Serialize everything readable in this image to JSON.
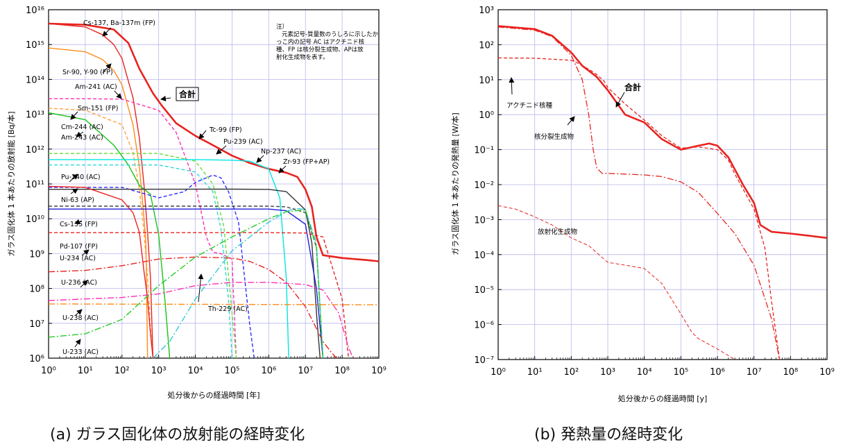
{
  "chart_data": [
    {
      "type": "line",
      "caption": "(a) ガラス固化体の放射能の経時変化",
      "xlabel": "処分後からの経過時間 [年]",
      "ylabel": "ガラス固化体 1 本あたりの放射能 [Bq/本]",
      "xscale": "log",
      "yscale": "log",
      "xlim": [
        1,
        1000000000
      ],
      "ylim": [
        1000000,
        10000000000000000
      ],
      "x_ticks": [
        1,
        10,
        100,
        1000,
        10000,
        100000,
        1000000,
        10000000,
        100000000,
        1000000000
      ],
      "y_ticks": [
        1000000,
        10000000,
        100000000,
        1000000000,
        10000000000,
        100000000000,
        1000000000000,
        10000000000000,
        100000000000000,
        1000000000000000,
        10000000000000000
      ],
      "grid": true,
      "note": "注）\n元素記号-質量数のうしろに示したかっこ内の記号 AC はアクチニド核種、FP は核分裂生成物、APは放射化生成物を表す。",
      "series": [
        {
          "name": "合計",
          "color": "#e8231f",
          "style": "solid",
          "width": 2.6,
          "x": [
            1,
            10,
            60,
            150,
            300,
            700,
            1200,
            3000,
            10000,
            30000,
            100000,
            300000,
            1000000,
            3000000,
            6000000,
            10000000,
            15000000,
            20000000,
            30000000,
            100000000,
            500000000,
            1000000000
          ],
          "y": [
            4000000000000000.0,
            3700000000000000.0,
            2700000000000000.0,
            1100000000000000.0,
            200000000000000.0,
            40000000000000.0,
            18000000000000.0,
            5500000000000.0,
            2400000000000.0,
            1300000000000.0,
            650000000000.0,
            400000000000.0,
            270000000000.0,
            210000000000.0,
            160000000000.0,
            70000000000.0,
            22000000000.0,
            3000000000.0,
            900000000.0,
            750000000.0,
            650000000.0,
            600000000.0
          ]
        },
        {
          "name": "Cs-137, Ba-137m (FP)",
          "color": "#e8231f",
          "style": "solid",
          "width": 1.4,
          "x": [
            1,
            10,
            30,
            60,
            100,
            200,
            300,
            400,
            500,
            600,
            700
          ],
          "y": [
            4000000000000000.0,
            3200000000000000.0,
            1900000000000000.0,
            1000000000000000.0,
            400000000000000.0,
            30000000000000.0,
            2000000000000.0,
            90000000000.0,
            4000000000.0,
            200000000.0,
            1000000.0
          ]
        },
        {
          "name": "Sr-90, Y-90 (FP)",
          "color": "#ff8c1a",
          "style": "solid",
          "width": 1.4,
          "x": [
            1,
            10,
            30,
            60,
            100,
            200,
            300,
            400,
            450,
            500
          ],
          "y": [
            800000000000000.0,
            620000000000000.0,
            370000000000000.0,
            180000000000000.0,
            70000000000000.0,
            5000000000000.0,
            300000000000.0,
            10000000000.0,
            2000000000.0,
            1000000.0
          ]
        },
        {
          "name": "Am-241 (AC)",
          "color": "#ff2fb0",
          "style": "dash",
          "width": 1.4,
          "x": [
            1,
            10,
            100,
            1000,
            3000,
            10000,
            20000,
            30000,
            50000,
            100000,
            130000
          ],
          "y": [
            28000000000000.0,
            28000000000000.0,
            27000000000000.0,
            13000000000000.0,
            3000000000000.0,
            100000000000.0,
            3000000000.0,
            1100000000.0,
            1000000000.0,
            700000000.0,
            1000000.0
          ]
        },
        {
          "name": "Sm-151 (FP)",
          "color": "#ffa040",
          "style": "dash",
          "width": 1.4,
          "x": [
            1,
            10,
            100,
            200,
            300,
            400,
            500,
            600,
            700
          ],
          "y": [
            15000000000000.0,
            13000000000000.0,
            5000000000000.0,
            800000000000.0,
            70000000000.0,
            4000000000.0,
            200000000.0,
            7000000.0,
            1000000.0
          ]
        },
        {
          "name": "Cm-244 (AC)",
          "color": "#18c318",
          "style": "solid",
          "width": 1.4,
          "x": [
            1,
            10,
            60,
            150,
            300,
            600,
            1000,
            1500,
            2000
          ],
          "y": [
            11000000000000.0,
            7000000000000.0,
            1300000000000.0,
            350000000000.0,
            90000000000.0,
            50000000000.0,
            3500000000.0,
            40000000.0,
            1000000.0
          ]
        },
        {
          "name": "Am-243 (AC)",
          "color": "#66dd33",
          "style": "dash",
          "width": 1.4,
          "x": [
            1,
            1000,
            10000,
            30000,
            60000,
            100000,
            130000
          ],
          "y": [
            750000000000.0,
            750000000000.0,
            450000000000.0,
            100000000000.0,
            6000000000.0,
            20000000.0,
            1000000.0
          ]
        },
        {
          "name": "Pu-240 (AC)",
          "color": "#33d6d6",
          "style": "dash",
          "width": 1.4,
          "x": [
            1,
            1000,
            10000,
            30000,
            50000,
            80000,
            100000
          ],
          "y": [
            350000000000.0,
            350000000000.0,
            220000000000.0,
            60000000000.0,
            5000000000.0,
            50000000.0,
            1000000.0
          ]
        },
        {
          "name": "Tc-99 (FP)",
          "color": "#00e5e5",
          "style": "solid",
          "width": 1.4,
          "x": [
            1,
            10000,
            100000,
            300000,
            1000000,
            2000000,
            3000000,
            3500000
          ],
          "y": [
            500000000000.0,
            500000000000.0,
            480000000000.0,
            450000000000.0,
            270000000000.0,
            40000000000.0,
            200000000.0,
            1000000.0
          ]
        },
        {
          "name": "Pu-239 (AC)",
          "color": "#2a2aff",
          "style": "dash",
          "width": 1.4,
          "x": [
            1,
            100,
            1000,
            5000,
            10000,
            30000,
            50000,
            80000,
            150000,
            300000,
            400000
          ],
          "y": [
            80000000000.0,
            80000000000.0,
            40000000000.0,
            60000000000.0,
            110000000000.0,
            180000000000.0,
            150000000000.0,
            60000000000.0,
            8000000000.0,
            10000000.0,
            1000000.0
          ]
        },
        {
          "name": "Np-237 (AC)",
          "color": "#333333",
          "style": "solid",
          "width": 1.4,
          "x": [
            1,
            100000,
            1000000,
            3000000,
            10000000,
            15000000,
            20000000,
            25000000
          ],
          "y": [
            70000000000.0,
            71000000000.0,
            70000000000.0,
            60000000000.0,
            18000000000.0,
            2000000000.0,
            20000000.0,
            1000000.0
          ]
        },
        {
          "name": "Zr-93 (FP+AP)",
          "color": "#444444",
          "style": "dash",
          "width": 1.4,
          "x": [
            1,
            1000000,
            3000000,
            10000000,
            20000000,
            30000000
          ],
          "y": [
            23000000000.0,
            23000000000.0,
            22000000000.0,
            15000000000.0,
            1500000000.0,
            1000000.0
          ]
        },
        {
          "name": "Ni-63 (AP)",
          "color": "#e8231f",
          "style": "solid",
          "width": 1.4,
          "x": [
            1,
            10,
            100,
            200,
            300,
            400,
            500,
            600,
            700,
            800
          ],
          "y": [
            85000000000.0,
            80000000000.0,
            35000000000.0,
            15000000000.0,
            4000000000.0,
            300000000.0,
            50000000.0,
            5000000.0,
            1000000.0,
            1000000.0
          ]
        },
        {
          "name": "Cs-135 (FP)",
          "color": "#1e1ed6",
          "style": "solid",
          "width": 1.4,
          "x": [
            1,
            100000,
            1000000,
            3000000,
            10000000,
            20000000,
            30000000
          ],
          "y": [
            19000000000.0,
            19000000000.0,
            19000000000.0,
            17000000000.0,
            7000000000.0,
            100000000.0,
            1000000.0
          ]
        },
        {
          "name": "Pd-107 (FP)",
          "color": "#e8231f",
          "style": "dash",
          "width": 1.4,
          "x": [
            1,
            1000000,
            10000000,
            30000000,
            100000000,
            150000000
          ],
          "y": [
            4000000000.0,
            4000000000.0,
            3900000000.0,
            3000000000.0,
            50000000.0,
            1000000.0
          ]
        },
        {
          "name": "U-234 (AC)",
          "color": "#e8231f",
          "style": "dashdot",
          "width": 1.4,
          "x": [
            1,
            10,
            100,
            1000,
            10000,
            100000,
            300000,
            1000000,
            3000000,
            10000000,
            30000000,
            50000000,
            70000000
          ],
          "y": [
            300000000.0,
            330000000.0,
            450000000.0,
            700000000.0,
            800000000.0,
            750000000.0,
            600000000.0,
            350000000.0,
            150000000.0,
            30000000.0,
            3000000.0,
            1500000.0,
            1000000.0
          ]
        },
        {
          "name": "U-236 (AC)",
          "color": "#ff2fb0",
          "style": "dashdot",
          "width": 1.4,
          "x": [
            1,
            10,
            100,
            1000,
            10000,
            100000,
            1000000,
            10000000,
            30000000,
            80000000,
            150000000,
            200000000
          ],
          "y": [
            45000000.0,
            50000000.0,
            55000000.0,
            70000000.0,
            120000000.0,
            150000000.0,
            150000000.0,
            130000000.0,
            90000000.0,
            20000000.0,
            2000000.0,
            1000000.0
          ]
        },
        {
          "name": "U-238 (AC)",
          "color": "#ff8c1a",
          "style": "dashdot",
          "width": 1.4,
          "x": [
            1,
            1000000000
          ],
          "y": [
            36000000.0,
            34000000.0
          ]
        },
        {
          "name": "Th-229 (AC)",
          "color": "#33c8d6",
          "style": "dashdot",
          "width": 1.4,
          "x": [
            700,
            2000,
            10000,
            100000,
            1000000,
            3000000,
            5000000,
            8000000,
            10000000,
            20000000,
            30000000
          ],
          "y": [
            1000000.0,
            3000000.0,
            50000000.0,
            1200000000.0,
            8000000000.0,
            16000000000.0,
            20000000000.0,
            19000000000.0,
            18000000000.0,
            2000000000.0,
            1000000.0
          ]
        },
        {
          "name": "U-233 (AC)",
          "color": "#22cc22",
          "style": "dashdot",
          "width": 1.4,
          "x": [
            1,
            10,
            100,
            1000,
            10000,
            100000,
            1000000,
            3000000,
            10000000,
            20000000,
            30000000
          ],
          "y": [
            4000000.0,
            5000000.0,
            13000000.0,
            120000000.0,
            800000000.0,
            3000000000.0,
            10000000000.0,
            16000000000.0,
            18000000000.0,
            1500000000.0,
            1000000.0
          ]
        }
      ],
      "labels": [
        {
          "text": "Cs-137, Ba-137m (FP)"
        },
        {
          "text": "Sr-90, Y-90 (FP)"
        },
        {
          "text": "Am-241 (AC)"
        },
        {
          "text": "Sm-151 (FP)"
        },
        {
          "text": "Cm-244 (AC)"
        },
        {
          "text": "Am-243 (AC)"
        },
        {
          "text": "合計",
          "boxed": true
        },
        {
          "text": "Tc-99 (FP)"
        },
        {
          "text": "Pu-239 (AC)"
        },
        {
          "text": "Np-237 (AC)"
        },
        {
          "text": "Zr-93 (FP+AP)"
        },
        {
          "text": "Pu-240 (AC)"
        },
        {
          "text": "Ni-63 (AP)"
        },
        {
          "text": "Cs-135 (FP)"
        },
        {
          "text": "Pd-107 (FP)"
        },
        {
          "text": "U-234 (AC)"
        },
        {
          "text": "U-236 (AC)"
        },
        {
          "text": "U-238 (AC)"
        },
        {
          "text": "Th-229 (AC)"
        },
        {
          "text": "U-233 (AC)"
        }
      ]
    },
    {
      "type": "line",
      "caption": "(b) 発熱量の経時変化",
      "xlabel": "処分後からの経過時間 [y]",
      "ylabel": "ガラス固化体 1 本あたりの発熱量 [W/本]",
      "xscale": "log",
      "yscale": "log",
      "xlim": [
        1,
        1000000000
      ],
      "ylim": [
        1e-07,
        1000
      ],
      "x_ticks": [
        1,
        10,
        100,
        1000,
        10000,
        100000,
        1000000,
        10000000,
        100000000,
        1000000000
      ],
      "y_ticks": [
        1e-07,
        1e-06,
        1e-05,
        0.0001,
        0.001,
        0.01,
        0.1,
        1,
        10,
        100,
        1000
      ],
      "grid": true,
      "series": [
        {
          "name": "合計",
          "color": "#e8231f",
          "style": "solid",
          "width": 2.6,
          "x": [
            1,
            10,
            30,
            100,
            200,
            500,
            1000,
            3000,
            10000,
            30000,
            100000,
            300000,
            600000,
            1000000,
            2000000,
            5000000,
            10000000,
            15000000,
            30000000,
            100000000,
            300000000,
            1000000000
          ],
          "y": [
            340,
            280,
            180,
            60,
            25,
            12,
            5,
            1,
            0.6,
            0.2,
            0.1,
            0.13,
            0.15,
            0.13,
            0.06,
            0.01,
            0.003,
            0.0007,
            0.00045,
            0.0004,
            0.00035,
            0.0003
          ]
        },
        {
          "name": "アクチニド核種",
          "color": "#e8231f",
          "style": "dash",
          "width": 1.3,
          "x": [
            1,
            10,
            100,
            150,
            200,
            300,
            500,
            800,
            1000,
            3000,
            10000,
            30000,
            100000,
            300000,
            1000000,
            2000000,
            3000000,
            10000000,
            20000000,
            30000000,
            50000000
          ],
          "y": [
            42,
            41,
            36,
            30,
            25,
            20,
            14,
            9,
            6,
            2,
            0.7,
            0.25,
            0.11,
            0.12,
            0.1,
            0.05,
            0.02,
            0.002,
            0.00015,
            5e-06,
            1e-07
          ]
        },
        {
          "name": "核分裂生成物",
          "color": "#e8231f",
          "style": "dashdot",
          "width": 1.3,
          "x": [
            1,
            10,
            30,
            100,
            200,
            300,
            400,
            500,
            700,
            1000,
            3000,
            10000,
            30000,
            100000,
            300000,
            1000000,
            3000000,
            10000000,
            30000000,
            50000000
          ],
          "y": [
            320,
            260,
            170,
            50,
            10,
            1,
            0.1,
            0.03,
            0.021,
            0.021,
            0.02,
            0.019,
            0.017,
            0.012,
            0.006,
            0.0015,
            0.0004,
            5e-05,
            1.5e-06,
            1e-07
          ]
        },
        {
          "name": "放射化生成物",
          "color": "#e8231f",
          "style": "dash",
          "width": 1.0,
          "x": [
            1,
            3,
            10,
            30,
            100,
            300,
            1000,
            3000,
            10000,
            30000,
            100000,
            200000,
            300000,
            1000000,
            3000000
          ],
          "y": [
            0.0025,
            0.002,
            0.0012,
            0.0007,
            0.0003,
            0.00018,
            6e-05,
            5e-05,
            4e-05,
            1.5e-05,
            2e-06,
            6e-07,
            4e-07,
            2e-07,
            1e-07
          ]
        }
      ],
      "labels": [
        {
          "text": "アクチニド核種"
        },
        {
          "text": "合計"
        },
        {
          "text": "核分裂生成物"
        },
        {
          "text": "放射化生成物"
        }
      ]
    }
  ]
}
